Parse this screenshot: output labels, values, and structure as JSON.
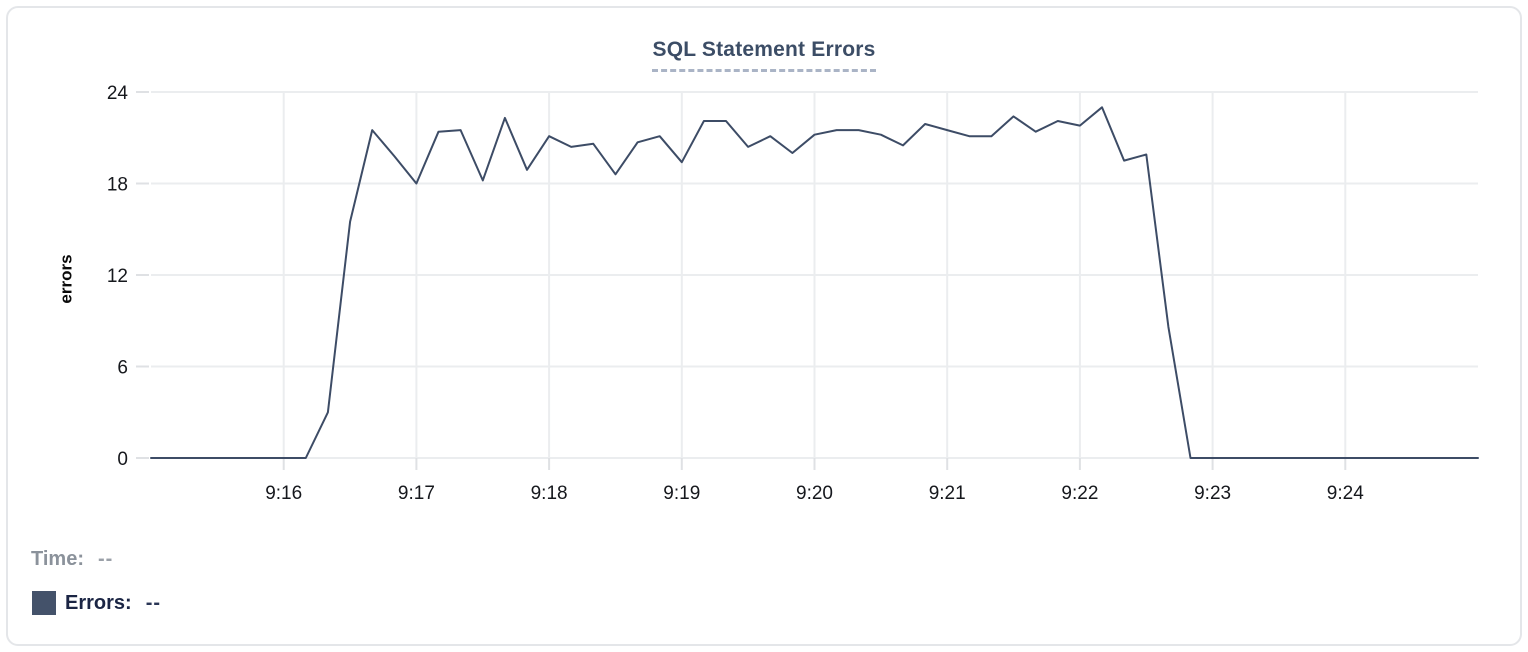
{
  "chart_data": {
    "type": "line",
    "title": "SQL Statement Errors",
    "xlabel": "",
    "ylabel": "errors",
    "ylim": [
      0,
      24
    ],
    "yticks": [
      0,
      6,
      12,
      18,
      24
    ],
    "xticks": [
      "9:16",
      "9:17",
      "9:18",
      "9:19",
      "9:20",
      "9:21",
      "9:22",
      "9:23",
      "9:24"
    ],
    "x_range": [
      "9:15:00",
      "9:25:00"
    ],
    "grid": true,
    "legend_position": "bottom-left",
    "series": [
      {
        "name": "Errors",
        "color": "#3d4c66",
        "points": [
          [
            "9:15:00",
            0
          ],
          [
            "9:15:10",
            0
          ],
          [
            "9:15:20",
            0
          ],
          [
            "9:15:30",
            0
          ],
          [
            "9:15:40",
            0
          ],
          [
            "9:15:50",
            0
          ],
          [
            "9:16:00",
            0
          ],
          [
            "9:16:10",
            0
          ],
          [
            "9:16:20",
            3
          ],
          [
            "9:16:30",
            15.5
          ],
          [
            "9:16:40",
            21.5
          ],
          [
            "9:16:50",
            19.8
          ],
          [
            "9:17:00",
            18
          ],
          [
            "9:17:10",
            21.4
          ],
          [
            "9:17:20",
            21.5
          ],
          [
            "9:17:30",
            18.2
          ],
          [
            "9:17:40",
            22.3
          ],
          [
            "9:17:50",
            18.9
          ],
          [
            "9:18:00",
            21.1
          ],
          [
            "9:18:10",
            20.4
          ],
          [
            "9:18:20",
            20.6
          ],
          [
            "9:18:30",
            18.6
          ],
          [
            "9:18:40",
            20.7
          ],
          [
            "9:18:50",
            21.1
          ],
          [
            "9:19:00",
            19.4
          ],
          [
            "9:19:10",
            22.1
          ],
          [
            "9:19:20",
            22.1
          ],
          [
            "9:19:30",
            20.4
          ],
          [
            "9:19:40",
            21.1
          ],
          [
            "9:19:50",
            20
          ],
          [
            "9:20:00",
            21.2
          ],
          [
            "9:20:10",
            21.5
          ],
          [
            "9:20:20",
            21.5
          ],
          [
            "9:20:30",
            21.2
          ],
          [
            "9:20:40",
            20.5
          ],
          [
            "9:20:50",
            21.9
          ],
          [
            "9:21:00",
            21.5
          ],
          [
            "9:21:10",
            21.1
          ],
          [
            "9:21:20",
            21.1
          ],
          [
            "9:21:30",
            22.4
          ],
          [
            "9:21:40",
            21.4
          ],
          [
            "9:21:50",
            22.1
          ],
          [
            "9:22:00",
            21.8
          ],
          [
            "9:22:10",
            23
          ],
          [
            "9:22:20",
            19.5
          ],
          [
            "9:22:30",
            19.9
          ],
          [
            "9:22:40",
            8.6
          ],
          [
            "9:22:50",
            0
          ],
          [
            "9:23:00",
            0
          ],
          [
            "9:23:10",
            0
          ],
          [
            "9:23:20",
            0
          ],
          [
            "9:23:30",
            0
          ],
          [
            "9:23:40",
            0
          ],
          [
            "9:23:50",
            0
          ],
          [
            "9:24:00",
            0
          ],
          [
            "9:24:10",
            0
          ],
          [
            "9:24:20",
            0
          ],
          [
            "9:24:30",
            0
          ],
          [
            "9:24:40",
            0
          ],
          [
            "9:24:50",
            0
          ],
          [
            "9:25:00",
            0
          ]
        ]
      }
    ]
  },
  "legend": {
    "time_label": "Time:",
    "time_value": "--",
    "errors_label": "Errors:",
    "errors_value": "--",
    "errors_swatch_color": "#44526a"
  },
  "colors": {
    "line": "#3d4c66",
    "title": "#3c4d66",
    "title_underline": "#aab4c6",
    "gridline": "#ebedef",
    "tick": "#dfe1e4",
    "tick_label": "#16181d",
    "card_border": "#e4e6e9"
  }
}
